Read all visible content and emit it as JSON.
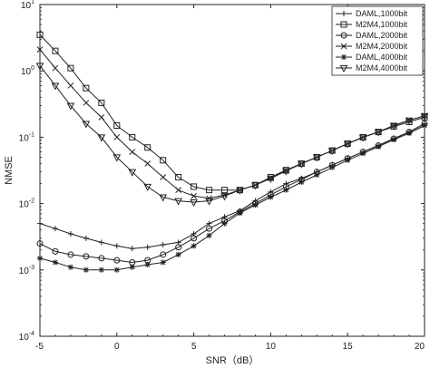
{
  "chart_data": {
    "type": "line",
    "xlabel": "SNR（dB）",
    "ylabel": "NMSE",
    "yscale": "log",
    "xlim": [
      -5,
      20
    ],
    "ylim": [
      0.0001,
      10
    ],
    "xticks": [
      -5,
      0,
      5,
      10,
      15,
      20
    ],
    "xtick_labels": [
      "-5",
      "0",
      "5",
      "10",
      "15",
      "20"
    ],
    "yticks": [
      0.0001,
      0.001,
      0.01,
      0.1,
      1,
      10
    ],
    "ytick_labels": [
      {
        "base": "10",
        "exp": "-4"
      },
      {
        "base": "10",
        "exp": "-3"
      },
      {
        "base": "10",
        "exp": "-2"
      },
      {
        "base": "10",
        "exp": "-1"
      },
      {
        "base": "10",
        "exp": "0"
      },
      {
        "base": "10",
        "exp": "1"
      }
    ],
    "grid": false,
    "legend_position": "top-right",
    "x": [
      -5,
      -4,
      -3,
      -2,
      -1,
      0,
      1,
      2,
      3,
      4,
      5,
      6,
      7,
      8,
      9,
      10,
      11,
      12,
      13,
      14,
      15,
      16,
      17,
      18,
      19,
      20
    ],
    "series": [
      {
        "name": "DAML,1000bit",
        "marker": "plus",
        "values": [
          0.005,
          0.0042,
          0.0035,
          0.003,
          0.0026,
          0.0023,
          0.0021,
          0.0022,
          0.0024,
          0.0026,
          0.0035,
          0.005,
          0.0063,
          0.0078,
          0.011,
          0.015,
          0.02,
          0.024,
          0.03,
          0.038,
          0.048,
          0.06,
          0.075,
          0.095,
          0.12,
          0.16
        ]
      },
      {
        "name": "M2M4,1000bit",
        "marker": "square",
        "values": [
          3.5,
          2.0,
          1.1,
          0.55,
          0.33,
          0.15,
          0.1,
          0.07,
          0.045,
          0.025,
          0.018,
          0.016,
          0.016,
          0.016,
          0.019,
          0.025,
          0.032,
          0.04,
          0.05,
          0.063,
          0.08,
          0.1,
          0.12,
          0.145,
          0.17,
          0.2
        ]
      },
      {
        "name": "DAML,2000bit",
        "marker": "circle",
        "values": [
          0.0025,
          0.0019,
          0.0017,
          0.0016,
          0.0015,
          0.0014,
          0.0013,
          0.0014,
          0.0017,
          0.0022,
          0.003,
          0.0042,
          0.0055,
          0.0075,
          0.01,
          0.0135,
          0.018,
          0.023,
          0.03,
          0.038,
          0.048,
          0.06,
          0.075,
          0.095,
          0.12,
          0.16
        ]
      },
      {
        "name": "M2M4,2000bit",
        "marker": "x",
        "values": [
          2.1,
          1.1,
          0.6,
          0.33,
          0.2,
          0.1,
          0.06,
          0.04,
          0.025,
          0.016,
          0.013,
          0.012,
          0.0135,
          0.016,
          0.019,
          0.024,
          0.031,
          0.04,
          0.05,
          0.063,
          0.08,
          0.1,
          0.12,
          0.15,
          0.18,
          0.21
        ]
      },
      {
        "name": "DAML,4000bit",
        "marker": "asterisk",
        "values": [
          0.0015,
          0.0013,
          0.0011,
          0.001,
          0.001,
          0.001,
          0.0011,
          0.0012,
          0.0013,
          0.0017,
          0.0023,
          0.0033,
          0.005,
          0.0072,
          0.0095,
          0.0125,
          0.016,
          0.021,
          0.027,
          0.035,
          0.045,
          0.057,
          0.072,
          0.092,
          0.115,
          0.15
        ]
      },
      {
        "name": "M2M4,4000bit",
        "marker": "triangle-down",
        "values": [
          1.2,
          0.6,
          0.3,
          0.16,
          0.1,
          0.05,
          0.03,
          0.018,
          0.0125,
          0.011,
          0.0105,
          0.011,
          0.013,
          0.016,
          0.019,
          0.024,
          0.031,
          0.04,
          0.05,
          0.063,
          0.08,
          0.1,
          0.12,
          0.15,
          0.18,
          0.21
        ]
      }
    ]
  }
}
